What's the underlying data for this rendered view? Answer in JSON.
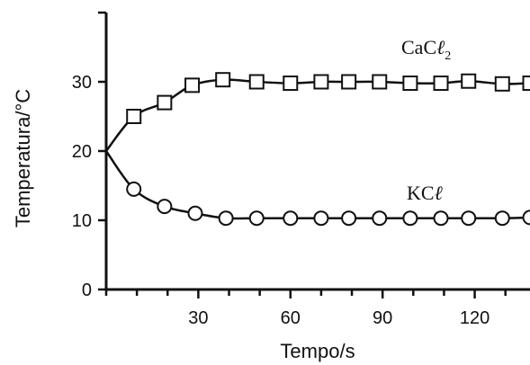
{
  "chart_data": {
    "type": "line",
    "title": "",
    "xlabel": "Tempo/s",
    "ylabel": "Temperatura/°C",
    "xlim": [
      0,
      138
    ],
    "ylim": [
      0,
      40
    ],
    "x_ticks": [
      30,
      60,
      90,
      120
    ],
    "x_minor_ticks": [
      0,
      10,
      20,
      40,
      50,
      70,
      80,
      100,
      110,
      130
    ],
    "y_ticks": [
      0,
      10,
      20,
      30
    ],
    "grid": false,
    "start_point": [
      0,
      20
    ],
    "series": [
      {
        "name": "CaCl2",
        "label_main": "CaC",
        "label_ell": "ℓ",
        "label_sub": "2",
        "marker": "square",
        "x": [
          9,
          19,
          28,
          38,
          49,
          60,
          70,
          79,
          89,
          99,
          109,
          118,
          129,
          138
        ],
        "y": [
          25,
          27,
          29.5,
          30.3,
          30,
          29.8,
          30,
          30,
          30,
          29.8,
          29.8,
          30.1,
          29.7,
          29.8
        ]
      },
      {
        "name": "KCl",
        "label_main": "KC",
        "label_ell": "ℓ",
        "label_sub": "",
        "marker": "circle",
        "x": [
          9,
          19,
          29,
          39,
          49,
          60,
          70,
          79,
          89,
          99,
          109,
          118,
          129,
          138
        ],
        "y": [
          14.5,
          12,
          11,
          10.3,
          10.3,
          10.3,
          10.3,
          10.3,
          10.3,
          10.3,
          10.3,
          10.3,
          10.3,
          10.4
        ]
      }
    ]
  }
}
